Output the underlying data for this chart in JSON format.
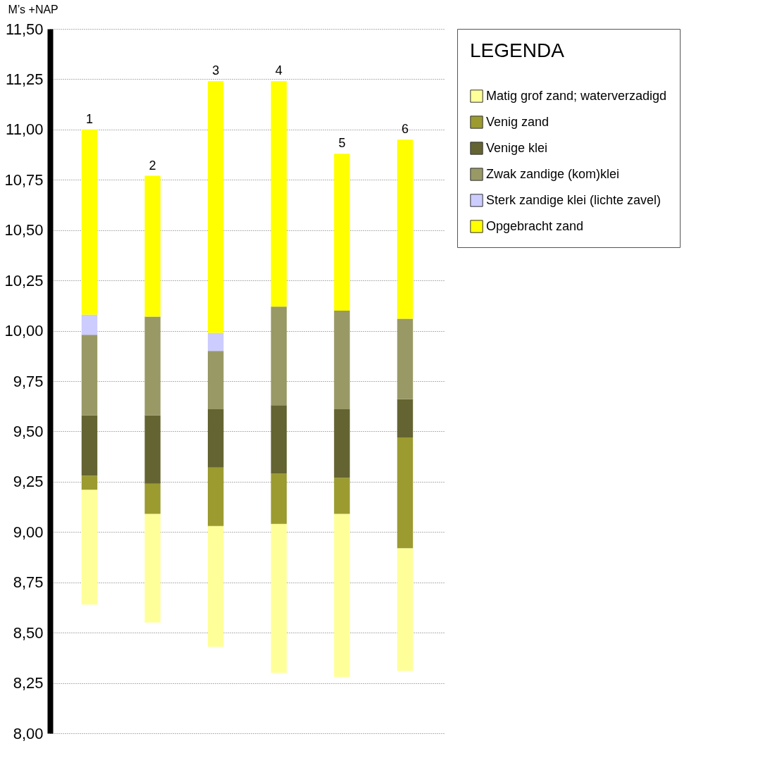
{
  "chart_data": {
    "type": "bar",
    "ylabel": "M’s +NAP",
    "legend_title": "LEGENDA",
    "legend": "right",
    "grid": "y",
    "tick_labels": "y",
    "categories": [
      "1",
      "2",
      "3",
      "4",
      "5",
      "6"
    ],
    "series": [
      {
        "name": "Matig grof zand; waterverzadigd",
        "color": "#ffff99",
        "base": [
          8.64,
          8.55,
          8.43,
          8.3,
          8.28,
          8.31
        ],
        "values": [
          0.57,
          0.54,
          0.6,
          0.74,
          0.81,
          0.61
        ]
      },
      {
        "name": "Venig zand",
        "color": "#9b9b30",
        "base": [
          9.21,
          9.09,
          9.03,
          9.04,
          9.09,
          8.92
        ],
        "values": [
          0.07,
          0.15,
          0.29,
          0.25,
          0.18,
          0.55
        ]
      },
      {
        "name": "Venige klei",
        "color": "#646432",
        "base": [
          9.28,
          9.24,
          9.32,
          9.29,
          9.27,
          9.47
        ],
        "values": [
          0.3,
          0.34,
          0.29,
          0.34,
          0.34,
          0.19
        ]
      },
      {
        "name": "Zwak zandige (kom)klei",
        "color": "#999966",
        "base": [
          9.58,
          9.58,
          9.61,
          9.63,
          9.61,
          9.66
        ],
        "values": [
          0.4,
          0.49,
          0.29,
          0.49,
          0.49,
          0.4
        ]
      },
      {
        "name": "Sterk zandige klei (lichte zavel)",
        "color": "#ccccff",
        "base": [
          9.98,
          null,
          9.9,
          null,
          null,
          null
        ],
        "values": [
          0.1,
          null,
          0.09,
          null,
          null,
          null
        ]
      },
      {
        "name": "Opgebracht zand",
        "color": "#ffff00",
        "base": [
          10.08,
          10.07,
          9.99,
          10.12,
          10.1,
          10.06
        ],
        "values": [
          0.92,
          0.7,
          1.25,
          1.12,
          0.78,
          0.89
        ]
      }
    ],
    "ylim": [
      8.0,
      11.5
    ],
    "yticks": [
      {
        "value": 8.0,
        "label": "8,00"
      },
      {
        "value": 8.25,
        "label": "8,25"
      },
      {
        "value": 8.5,
        "label": "8,50"
      },
      {
        "value": 8.75,
        "label": "8,75"
      },
      {
        "value": 9.0,
        "label": "9,00"
      },
      {
        "value": 9.25,
        "label": "9,25"
      },
      {
        "value": 9.5,
        "label": "9,50"
      },
      {
        "value": 9.75,
        "label": "9,75"
      },
      {
        "value": 10.0,
        "label": "10,00"
      },
      {
        "value": 10.25,
        "label": "10,25"
      },
      {
        "value": 10.5,
        "label": "10,50"
      },
      {
        "value": 10.75,
        "label": "10,75"
      },
      {
        "value": 11.0,
        "label": "11,00"
      },
      {
        "value": 11.25,
        "label": "11,25"
      },
      {
        "value": 11.5,
        "label": "11,50"
      }
    ]
  }
}
